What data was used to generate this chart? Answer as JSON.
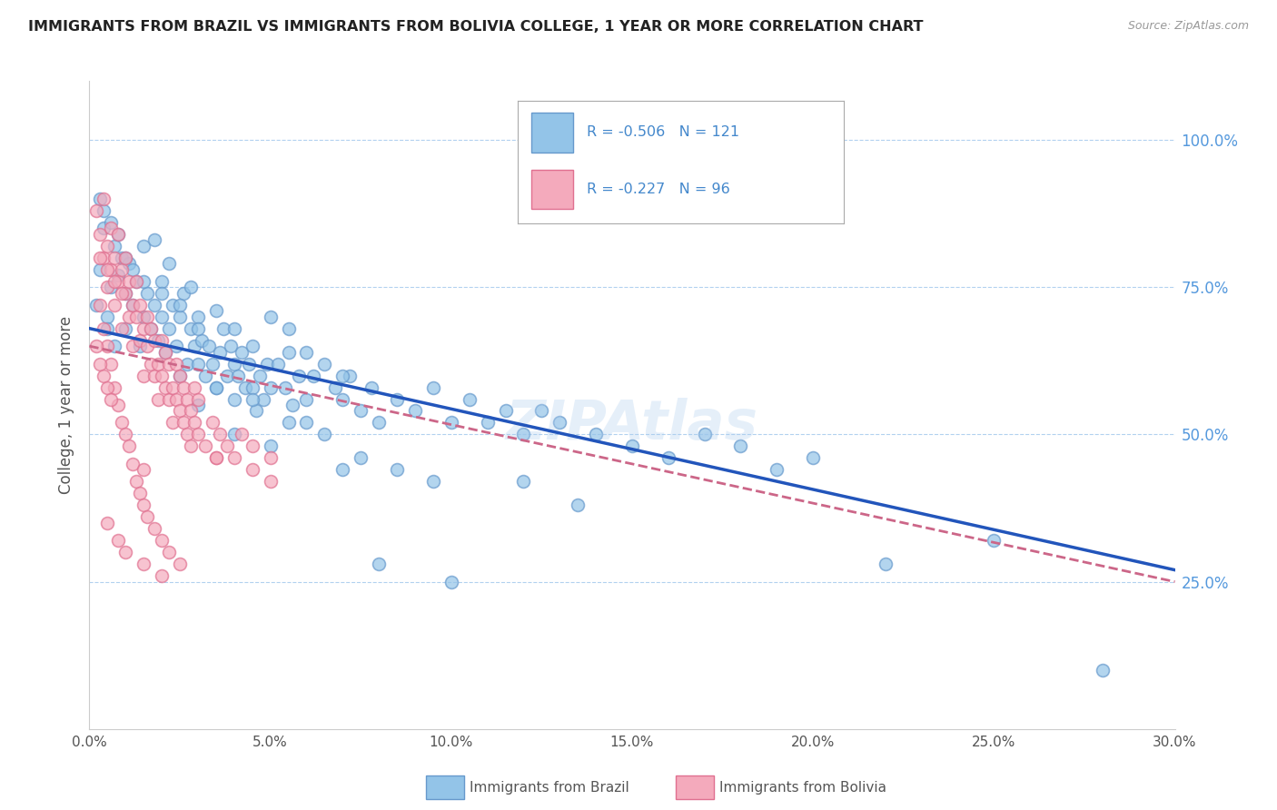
{
  "title": "IMMIGRANTS FROM BRAZIL VS IMMIGRANTS FROM BOLIVIA COLLEGE, 1 YEAR OR MORE CORRELATION CHART",
  "source": "Source: ZipAtlas.com",
  "ylabel": "College, 1 year or more",
  "xtick_labels": [
    "0.0%",
    "5.0%",
    "10.0%",
    "15.0%",
    "20.0%",
    "25.0%",
    "30.0%"
  ],
  "xtick_values": [
    0.0,
    5.0,
    10.0,
    15.0,
    20.0,
    25.0,
    30.0
  ],
  "ytick_labels_right": [
    "25.0%",
    "50.0%",
    "75.0%",
    "100.0%"
  ],
  "ytick_values_right": [
    25.0,
    50.0,
    75.0,
    100.0
  ],
  "xlim": [
    0.0,
    30.0
  ],
  "ylim": [
    0.0,
    110.0
  ],
  "brazil_color": "#93C4E8",
  "brazil_edge_color": "#6699CC",
  "bolivia_color": "#F4AABC",
  "bolivia_edge_color": "#E07090",
  "brazil_line_color": "#2255BB",
  "bolivia_line_color": "#CC6688",
  "brazil_R": -0.506,
  "brazil_N": 121,
  "bolivia_R": -0.227,
  "bolivia_N": 96,
  "legend_brazil": "Immigrants from Brazil",
  "legend_bolivia": "Immigrants from Bolivia",
  "watermark": "ZIPAtlas",
  "brazil_scatter": [
    [
      0.2,
      72
    ],
    [
      0.3,
      78
    ],
    [
      0.4,
      85
    ],
    [
      0.5,
      70
    ],
    [
      0.6,
      75
    ],
    [
      0.7,
      82
    ],
    [
      0.8,
      77
    ],
    [
      0.9,
      80
    ],
    [
      1.0,
      68
    ],
    [
      1.0,
      74
    ],
    [
      1.1,
      79
    ],
    [
      1.2,
      72
    ],
    [
      1.3,
      76
    ],
    [
      1.4,
      65
    ],
    [
      1.5,
      70
    ],
    [
      1.5,
      82
    ],
    [
      1.6,
      74
    ],
    [
      1.7,
      68
    ],
    [
      1.8,
      72
    ],
    [
      1.9,
      66
    ],
    [
      2.0,
      70
    ],
    [
      2.0,
      76
    ],
    [
      2.1,
      64
    ],
    [
      2.2,
      68
    ],
    [
      2.3,
      72
    ],
    [
      2.4,
      65
    ],
    [
      2.5,
      70
    ],
    [
      2.6,
      74
    ],
    [
      2.7,
      62
    ],
    [
      2.8,
      68
    ],
    [
      2.9,
      65
    ],
    [
      3.0,
      70
    ],
    [
      3.0,
      62
    ],
    [
      3.1,
      66
    ],
    [
      3.2,
      60
    ],
    [
      3.3,
      65
    ],
    [
      3.4,
      62
    ],
    [
      3.5,
      58
    ],
    [
      3.6,
      64
    ],
    [
      3.7,
      68
    ],
    [
      3.8,
      60
    ],
    [
      3.9,
      65
    ],
    [
      4.0,
      62
    ],
    [
      4.0,
      56
    ],
    [
      4.1,
      60
    ],
    [
      4.2,
      64
    ],
    [
      4.3,
      58
    ],
    [
      4.4,
      62
    ],
    [
      4.5,
      58
    ],
    [
      4.6,
      54
    ],
    [
      4.7,
      60
    ],
    [
      4.8,
      56
    ],
    [
      4.9,
      62
    ],
    [
      5.0,
      58
    ],
    [
      5.2,
      62
    ],
    [
      5.4,
      58
    ],
    [
      5.5,
      64
    ],
    [
      5.6,
      55
    ],
    [
      5.8,
      60
    ],
    [
      6.0,
      56
    ],
    [
      6.2,
      60
    ],
    [
      6.5,
      62
    ],
    [
      6.8,
      58
    ],
    [
      7.0,
      56
    ],
    [
      7.2,
      60
    ],
    [
      7.5,
      54
    ],
    [
      7.8,
      58
    ],
    [
      8.0,
      52
    ],
    [
      8.5,
      56
    ],
    [
      9.0,
      54
    ],
    [
      9.5,
      58
    ],
    [
      10.0,
      52
    ],
    [
      10.5,
      56
    ],
    [
      11.0,
      52
    ],
    [
      11.5,
      54
    ],
    [
      12.0,
      50
    ],
    [
      12.5,
      54
    ],
    [
      13.0,
      52
    ],
    [
      14.0,
      50
    ],
    [
      15.0,
      48
    ],
    [
      16.0,
      46
    ],
    [
      17.0,
      50
    ],
    [
      18.0,
      48
    ],
    [
      19.0,
      44
    ],
    [
      20.0,
      46
    ],
    [
      22.0,
      28
    ],
    [
      25.0,
      32
    ],
    [
      28.0,
      10
    ],
    [
      0.3,
      90
    ],
    [
      0.4,
      88
    ],
    [
      0.6,
      86
    ],
    [
      0.8,
      84
    ],
    [
      1.0,
      80
    ],
    [
      1.2,
      78
    ],
    [
      1.5,
      76
    ],
    [
      2.0,
      74
    ],
    [
      2.5,
      72
    ],
    [
      3.0,
      68
    ],
    [
      1.8,
      83
    ],
    [
      2.2,
      79
    ],
    [
      2.8,
      75
    ],
    [
      3.5,
      71
    ],
    [
      4.0,
      68
    ],
    [
      4.5,
      65
    ],
    [
      5.0,
      70
    ],
    [
      5.5,
      68
    ],
    [
      6.0,
      64
    ],
    [
      7.0,
      60
    ],
    [
      3.0,
      55
    ],
    [
      4.0,
      50
    ],
    [
      5.0,
      48
    ],
    [
      6.0,
      52
    ],
    [
      7.0,
      44
    ],
    [
      8.0,
      28
    ],
    [
      10.0,
      25
    ],
    [
      12.0,
      42
    ],
    [
      13.5,
      38
    ],
    [
      2.5,
      60
    ],
    [
      3.5,
      58
    ],
    [
      4.5,
      56
    ],
    [
      5.5,
      52
    ],
    [
      6.5,
      50
    ],
    [
      7.5,
      46
    ],
    [
      8.5,
      44
    ],
    [
      9.5,
      42
    ],
    [
      0.5,
      68
    ],
    [
      0.7,
      65
    ]
  ],
  "bolivia_scatter": [
    [
      0.2,
      88
    ],
    [
      0.3,
      84
    ],
    [
      0.4,
      90
    ],
    [
      0.4,
      80
    ],
    [
      0.5,
      82
    ],
    [
      0.5,
      75
    ],
    [
      0.6,
      78
    ],
    [
      0.6,
      85
    ],
    [
      0.7,
      80
    ],
    [
      0.7,
      72
    ],
    [
      0.8,
      76
    ],
    [
      0.8,
      84
    ],
    [
      0.9,
      78
    ],
    [
      0.9,
      68
    ],
    [
      1.0,
      74
    ],
    [
      1.0,
      80
    ],
    [
      1.1,
      70
    ],
    [
      1.1,
      76
    ],
    [
      1.2,
      72
    ],
    [
      1.2,
      65
    ],
    [
      1.3,
      70
    ],
    [
      1.3,
      76
    ],
    [
      1.4,
      66
    ],
    [
      1.4,
      72
    ],
    [
      1.5,
      68
    ],
    [
      1.5,
      60
    ],
    [
      1.6,
      65
    ],
    [
      1.6,
      70
    ],
    [
      1.7,
      62
    ],
    [
      1.7,
      68
    ],
    [
      1.8,
      60
    ],
    [
      1.8,
      66
    ],
    [
      1.9,
      62
    ],
    [
      1.9,
      56
    ],
    [
      2.0,
      60
    ],
    [
      2.0,
      66
    ],
    [
      2.1,
      58
    ],
    [
      2.1,
      64
    ],
    [
      2.2,
      56
    ],
    [
      2.2,
      62
    ],
    [
      2.3,
      58
    ],
    [
      2.3,
      52
    ],
    [
      2.4,
      56
    ],
    [
      2.4,
      62
    ],
    [
      2.5,
      54
    ],
    [
      2.5,
      60
    ],
    [
      2.6,
      52
    ],
    [
      2.6,
      58
    ],
    [
      2.7,
      50
    ],
    [
      2.7,
      56
    ],
    [
      2.8,
      54
    ],
    [
      2.8,
      48
    ],
    [
      2.9,
      52
    ],
    [
      2.9,
      58
    ],
    [
      3.0,
      50
    ],
    [
      3.0,
      56
    ],
    [
      3.2,
      48
    ],
    [
      3.4,
      52
    ],
    [
      3.5,
      46
    ],
    [
      3.6,
      50
    ],
    [
      3.8,
      48
    ],
    [
      4.0,
      46
    ],
    [
      4.2,
      50
    ],
    [
      4.5,
      48
    ],
    [
      5.0,
      46
    ],
    [
      0.3,
      72
    ],
    [
      0.4,
      68
    ],
    [
      0.5,
      65
    ],
    [
      0.6,
      62
    ],
    [
      0.7,
      58
    ],
    [
      0.8,
      55
    ],
    [
      0.9,
      52
    ],
    [
      1.0,
      50
    ],
    [
      1.1,
      48
    ],
    [
      1.2,
      45
    ],
    [
      1.3,
      42
    ],
    [
      1.4,
      40
    ],
    [
      1.5,
      38
    ],
    [
      1.6,
      36
    ],
    [
      1.8,
      34
    ],
    [
      2.0,
      32
    ],
    [
      2.2,
      30
    ],
    [
      2.5,
      28
    ],
    [
      0.5,
      35
    ],
    [
      0.8,
      32
    ],
    [
      1.0,
      30
    ],
    [
      1.5,
      28
    ],
    [
      2.0,
      26
    ],
    [
      0.2,
      65
    ],
    [
      0.3,
      62
    ],
    [
      0.4,
      60
    ],
    [
      0.5,
      58
    ],
    [
      0.6,
      56
    ],
    [
      3.5,
      46
    ],
    [
      1.5,
      44
    ],
    [
      4.5,
      44
    ],
    [
      5.0,
      42
    ],
    [
      0.3,
      80
    ],
    [
      0.5,
      78
    ],
    [
      0.7,
      76
    ],
    [
      0.9,
      74
    ]
  ]
}
